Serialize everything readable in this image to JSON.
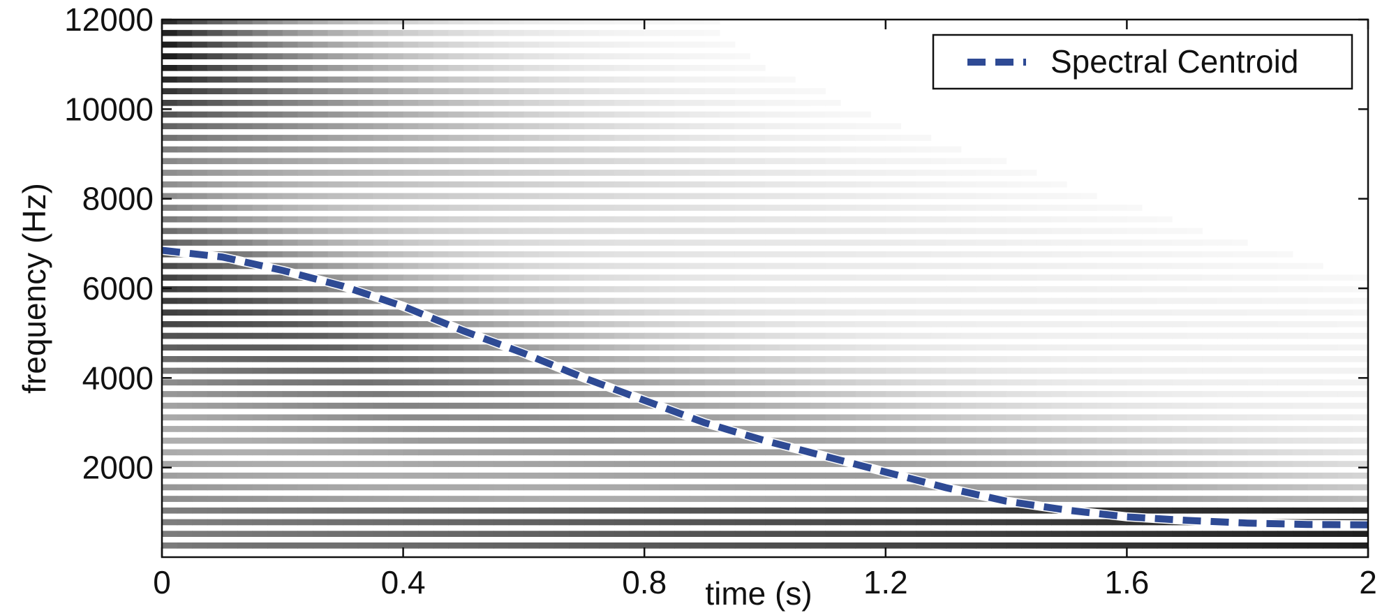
{
  "chart_data": {
    "type": "heatmap",
    "title": "",
    "xlabel": "time (s)",
    "ylabel": "frequency (Hz)",
    "xlim": [
      0,
      2
    ],
    "ylim": [
      0,
      12000
    ],
    "x_ticks": [
      0,
      0.4,
      0.8,
      1.2,
      1.6,
      2
    ],
    "x_tick_labels": [
      "0",
      "0.4",
      "0.8",
      "1.2",
      "1.6",
      "2"
    ],
    "y_ticks": [
      2000,
      4000,
      6000,
      8000,
      10000,
      12000
    ],
    "y_tick_labels": [
      "2000",
      "4000",
      "6000",
      "8000",
      "10000",
      "12000"
    ],
    "grid": false,
    "colormap": "grayscale (white = low, black = high)",
    "spectrogram": {
      "harmonic_spacing_hz": 260,
      "lowest_harmonic_hz": 260,
      "darkest_region": "below 1000 Hz at end of time range"
    },
    "legend": {
      "position": "top-right",
      "entries": [
        {
          "name": "Spectral Centroid",
          "style": "dashed",
          "color": "#2e4a94"
        }
      ]
    },
    "series": [
      {
        "name": "Spectral Centroid",
        "style": "dashed",
        "color": "#2e4a94",
        "x": [
          0,
          0.1,
          0.2,
          0.3,
          0.4,
          0.5,
          0.6,
          0.7,
          0.8,
          0.9,
          1.0,
          1.1,
          1.2,
          1.3,
          1.4,
          1.5,
          1.6,
          1.7,
          1.8,
          1.9,
          2.0
        ],
        "y": [
          6850,
          6700,
          6400,
          6050,
          5600,
          5050,
          4550,
          4000,
          3500,
          3000,
          2600,
          2250,
          1900,
          1550,
          1250,
          1050,
          900,
          820,
          760,
          730,
          720
        ]
      }
    ]
  }
}
